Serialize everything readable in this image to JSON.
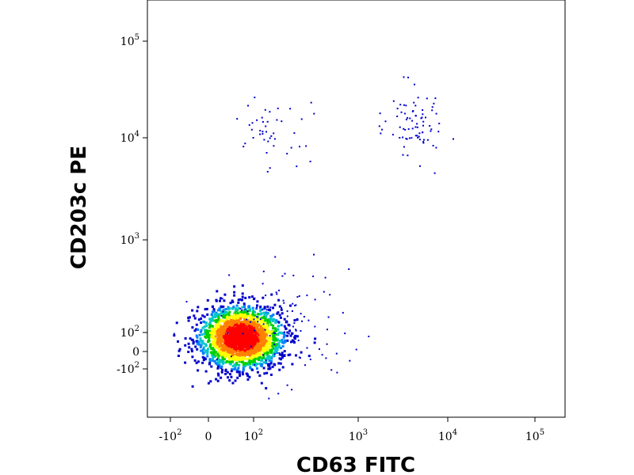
{
  "chart_data": {
    "type": "scatter",
    "style": "density pseudocolor dot plot",
    "xlabel": "CD63 FITC",
    "ylabel": "CD203c PE",
    "x_scale": "biexponential",
    "y_scale": "biexponential",
    "xlim": [
      -300,
      200000
    ],
    "ylim": [
      -2000,
      250000
    ],
    "grid": false,
    "x_ticks": [
      {
        "value": -100,
        "label": "-10",
        "exp": "2"
      },
      {
        "value": 0,
        "label": "0",
        "exp": ""
      },
      {
        "value": 100,
        "label": "10",
        "exp": "2"
      },
      {
        "value": 1000,
        "label": "10",
        "exp": "3"
      },
      {
        "value": 10000,
        "label": "10",
        "exp": "4"
      },
      {
        "value": 100000,
        "label": "10",
        "exp": "5"
      }
    ],
    "y_ticks": [
      {
        "value": -100,
        "label": "-10",
        "exp": "2"
      },
      {
        "value": 0,
        "label": "0",
        "exp": ""
      },
      {
        "value": 100,
        "label": "10",
        "exp": "2"
      },
      {
        "value": 1000,
        "label": "10",
        "exp": "3"
      },
      {
        "value": 10000,
        "label": "10",
        "exp": "4"
      },
      {
        "value": 100000,
        "label": "10",
        "exp": "5"
      }
    ],
    "density_colors": [
      "#0000cc",
      "#0080ff",
      "#00c8c8",
      "#00d000",
      "#ffff00",
      "#ff8000",
      "#ff0000"
    ],
    "populations": [
      {
        "name": "",
        "center": [
          70,
          80
        ],
        "spread_decades": [
          0.55,
          0.45
        ],
        "shape": "dense",
        "count": 2200
      },
      {
        "name": "",
        "center": [
          250,
          15000
        ],
        "spread_decades": [
          0.22,
          0.18
        ],
        "shape": "sparse",
        "count": 45
      },
      {
        "name": "",
        "center": [
          6500,
          25000
        ],
        "spread_decades": [
          0.18,
          0.17
        ],
        "shape": "sparse",
        "count": 80
      },
      {
        "name": "",
        "center": [
          350,
          200
        ],
        "spread_decades": [
          0.4,
          0.35
        ],
        "shape": "sparse",
        "count": 110
      }
    ]
  }
}
